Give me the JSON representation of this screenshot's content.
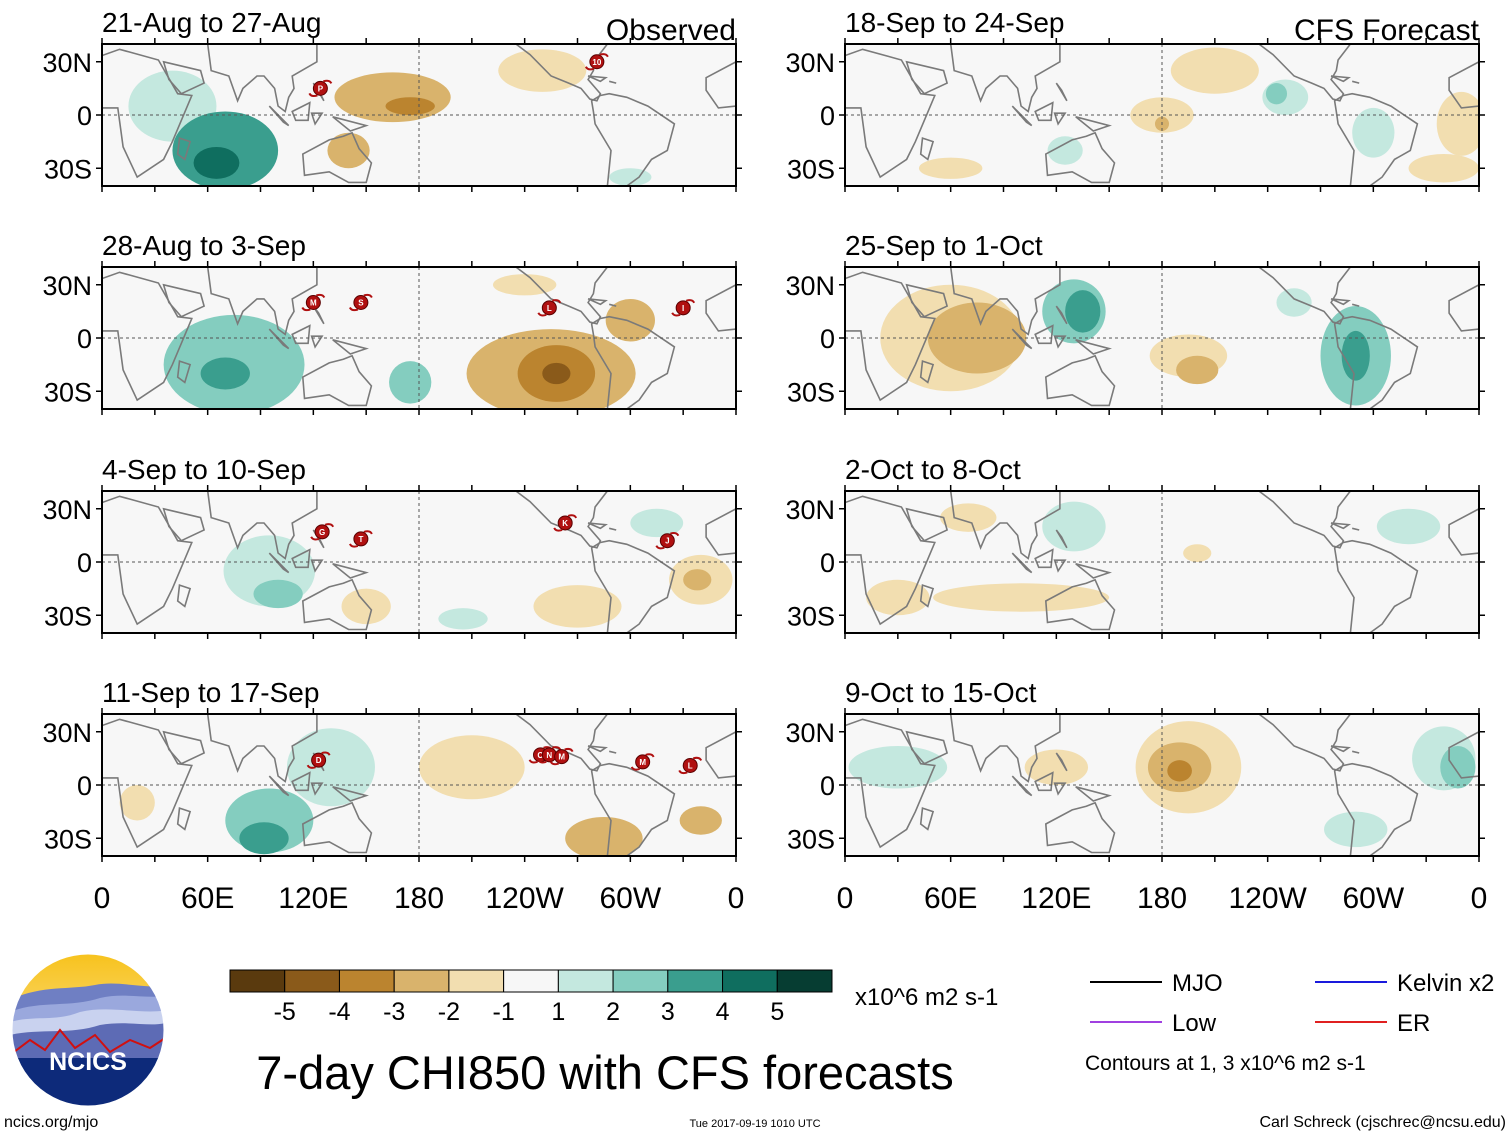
{
  "chart_data": {
    "type": "heatmap",
    "title": "7-day CHI850 with CFS forecasts",
    "units": "x10^6 m2 s-1",
    "colorbar": {
      "labels": [
        "-5",
        "-4",
        "-3",
        "-2",
        "-1",
        "1",
        "2",
        "3",
        "4",
        "5"
      ],
      "colors": [
        "#5a3a0e",
        "#8a5a1a",
        "#bb842f",
        "#d9b36c",
        "#f2deb0",
        "#f7f7f7",
        "#c4e8df",
        "#84cdbf",
        "#3a9e8e",
        "#0f6e5f",
        "#063d32"
      ]
    },
    "lon_ticks": [
      "0",
      "60E",
      "120E",
      "180",
      "120W",
      "60W",
      "0"
    ],
    "lat_ticks": [
      "30N",
      "0",
      "30S"
    ],
    "observed_label": "Observed",
    "forecast_label": "CFS Forecast",
    "panels": [
      {
        "title": "21-Aug to 27-Aug",
        "kind": "observed",
        "anomalies": [
          {
            "lon": 70,
            "lat": -20,
            "rx": 30,
            "ry": 22,
            "level": 3
          },
          {
            "lon": 65,
            "lat": -27,
            "rx": 13,
            "ry": 9,
            "level": 4
          },
          {
            "lon": 40,
            "lat": 5,
            "rx": 25,
            "ry": 20,
            "level": 1
          },
          {
            "lon": 165,
            "lat": 10,
            "rx": 33,
            "ry": 14,
            "level": -2
          },
          {
            "lon": 175,
            "lat": 5,
            "rx": 14,
            "ry": 5,
            "level": -3
          },
          {
            "lon": 140,
            "lat": -20,
            "rx": 12,
            "ry": 10,
            "level": -2
          },
          {
            "lon": 250,
            "lat": 25,
            "rx": 25,
            "ry": 12,
            "level": -1
          },
          {
            "lon": 300,
            "lat": -35,
            "rx": 12,
            "ry": 5,
            "level": 1
          }
        ],
        "storms": [
          {
            "lon": 124,
            "lat": 15,
            "label": "P"
          },
          {
            "lon": 281,
            "lat": 30,
            "label": "10"
          }
        ]
      },
      {
        "title": "28-Aug to 3-Sep",
        "kind": "observed",
        "anomalies": [
          {
            "lon": 75,
            "lat": -15,
            "rx": 40,
            "ry": 28,
            "level": 2
          },
          {
            "lon": 70,
            "lat": -20,
            "rx": 14,
            "ry": 9,
            "level": 3
          },
          {
            "lon": 175,
            "lat": -25,
            "rx": 12,
            "ry": 12,
            "level": 2
          },
          {
            "lon": 255,
            "lat": -20,
            "rx": 48,
            "ry": 25,
            "level": -2
          },
          {
            "lon": 258,
            "lat": -20,
            "rx": 22,
            "ry": 16,
            "level": -3
          },
          {
            "lon": 258,
            "lat": -20,
            "rx": 8,
            "ry": 6,
            "level": -4
          },
          {
            "lon": 300,
            "lat": 10,
            "rx": 14,
            "ry": 12,
            "level": -2
          },
          {
            "lon": 240,
            "lat": 30,
            "rx": 18,
            "ry": 6,
            "level": -1
          }
        ],
        "storms": [
          {
            "lon": 120,
            "lat": 20,
            "label": "M"
          },
          {
            "lon": 147,
            "lat": 20,
            "label": "S"
          },
          {
            "lon": 254,
            "lat": 17,
            "label": "L"
          },
          {
            "lon": 330,
            "lat": 17,
            "label": "I"
          }
        ]
      },
      {
        "title": "4-Sep to 10-Sep",
        "kind": "observed",
        "anomalies": [
          {
            "lon": 95,
            "lat": -5,
            "rx": 26,
            "ry": 20,
            "level": 1
          },
          {
            "lon": 100,
            "lat": -18,
            "rx": 14,
            "ry": 8,
            "level": 2
          },
          {
            "lon": 205,
            "lat": -32,
            "rx": 14,
            "ry": 6,
            "level": 1
          },
          {
            "lon": 150,
            "lat": -25,
            "rx": 14,
            "ry": 10,
            "level": -1
          },
          {
            "lon": 270,
            "lat": -25,
            "rx": 25,
            "ry": 12,
            "level": -1
          },
          {
            "lon": 340,
            "lat": -10,
            "rx": 18,
            "ry": 14,
            "level": -1
          },
          {
            "lon": 338,
            "lat": -10,
            "rx": 8,
            "ry": 6,
            "level": -2
          },
          {
            "lon": 315,
            "lat": 22,
            "rx": 15,
            "ry": 8,
            "level": 1
          }
        ],
        "storms": [
          {
            "lon": 125,
            "lat": 17,
            "label": "G"
          },
          {
            "lon": 147,
            "lat": 13,
            "label": "T"
          },
          {
            "lon": 263,
            "lat": 22,
            "label": "K"
          },
          {
            "lon": 321,
            "lat": 12,
            "label": "J"
          }
        ]
      },
      {
        "title": "11-Sep to 17-Sep",
        "kind": "observed",
        "anomalies": [
          {
            "lon": 95,
            "lat": -20,
            "rx": 25,
            "ry": 18,
            "level": 2
          },
          {
            "lon": 92,
            "lat": -30,
            "rx": 14,
            "ry": 9,
            "level": 3
          },
          {
            "lon": 130,
            "lat": 10,
            "rx": 25,
            "ry": 22,
            "level": 1
          },
          {
            "lon": 210,
            "lat": 10,
            "rx": 30,
            "ry": 18,
            "level": -1
          },
          {
            "lon": 285,
            "lat": -30,
            "rx": 22,
            "ry": 12,
            "level": -2
          },
          {
            "lon": 340,
            "lat": -20,
            "rx": 12,
            "ry": 8,
            "level": -2
          },
          {
            "lon": 20,
            "lat": -10,
            "rx": 10,
            "ry": 10,
            "level": -1
          }
        ],
        "storms": [
          {
            "lon": 123,
            "lat": 14,
            "label": "D"
          },
          {
            "lon": 249,
            "lat": 17,
            "label": "O"
          },
          {
            "lon": 254,
            "lat": 17,
            "label": "N"
          },
          {
            "lon": 261,
            "lat": 16,
            "label": "M"
          },
          {
            "lon": 307,
            "lat": 13,
            "label": "M"
          },
          {
            "lon": 334,
            "lat": 11,
            "label": "L"
          }
        ]
      },
      {
        "title": "18-Sep to 24-Sep",
        "kind": "forecast",
        "anomalies": [
          {
            "lon": 210,
            "lat": 25,
            "rx": 25,
            "ry": 13,
            "level": -1
          },
          {
            "lon": 180,
            "lat": 0,
            "rx": 18,
            "ry": 10,
            "level": -1
          },
          {
            "lon": 180,
            "lat": -5,
            "rx": 4,
            "ry": 4,
            "level": -2
          },
          {
            "lon": 250,
            "lat": 10,
            "rx": 13,
            "ry": 10,
            "level": 1
          },
          {
            "lon": 245,
            "lat": 12,
            "rx": 6,
            "ry": 6,
            "level": 2
          },
          {
            "lon": 350,
            "lat": -5,
            "rx": 14,
            "ry": 18,
            "level": -1
          },
          {
            "lon": 340,
            "lat": -30,
            "rx": 20,
            "ry": 8,
            "level": -1
          },
          {
            "lon": 60,
            "lat": -30,
            "rx": 18,
            "ry": 6,
            "level": -1
          },
          {
            "lon": 125,
            "lat": -20,
            "rx": 10,
            "ry": 8,
            "level": 1
          },
          {
            "lon": 300,
            "lat": -10,
            "rx": 12,
            "ry": 14,
            "level": 1
          }
        ],
        "storms": []
      },
      {
        "title": "25-Sep to 1-Oct",
        "kind": "forecast",
        "anomalies": [
          {
            "lon": 60,
            "lat": 0,
            "rx": 40,
            "ry": 30,
            "level": -1
          },
          {
            "lon": 75,
            "lat": 0,
            "rx": 28,
            "ry": 20,
            "level": -2
          },
          {
            "lon": 130,
            "lat": 15,
            "rx": 18,
            "ry": 18,
            "level": 2
          },
          {
            "lon": 135,
            "lat": 15,
            "rx": 10,
            "ry": 12,
            "level": 3
          },
          {
            "lon": 290,
            "lat": -10,
            "rx": 20,
            "ry": 28,
            "level": 2
          },
          {
            "lon": 290,
            "lat": -10,
            "rx": 8,
            "ry": 14,
            "level": 3
          },
          {
            "lon": 255,
            "lat": 20,
            "rx": 10,
            "ry": 8,
            "level": 1
          },
          {
            "lon": 195,
            "lat": -10,
            "rx": 22,
            "ry": 12,
            "level": -1
          },
          {
            "lon": 200,
            "lat": -18,
            "rx": 12,
            "ry": 8,
            "level": -2
          }
        ],
        "storms": []
      },
      {
        "title": "2-Oct to 8-Oct",
        "kind": "forecast",
        "anomalies": [
          {
            "lon": 130,
            "lat": 20,
            "rx": 18,
            "ry": 14,
            "level": 1
          },
          {
            "lon": 70,
            "lat": 25,
            "rx": 16,
            "ry": 8,
            "level": -1
          },
          {
            "lon": 100,
            "lat": -20,
            "rx": 50,
            "ry": 8,
            "level": -1
          },
          {
            "lon": 30,
            "lat": -20,
            "rx": 18,
            "ry": 10,
            "level": -1
          },
          {
            "lon": 200,
            "lat": 5,
            "rx": 8,
            "ry": 5,
            "level": -1
          },
          {
            "lon": 320,
            "lat": 20,
            "rx": 18,
            "ry": 10,
            "level": 1
          }
        ],
        "storms": []
      },
      {
        "title": "9-Oct to 15-Oct",
        "kind": "forecast",
        "anomalies": [
          {
            "lon": 195,
            "lat": 10,
            "rx": 30,
            "ry": 26,
            "level": -1
          },
          {
            "lon": 190,
            "lat": 10,
            "rx": 18,
            "ry": 14,
            "level": -2
          },
          {
            "lon": 190,
            "lat": 8,
            "rx": 7,
            "ry": 6,
            "level": -3
          },
          {
            "lon": 340,
            "lat": 15,
            "rx": 18,
            "ry": 18,
            "level": 1
          },
          {
            "lon": 348,
            "lat": 10,
            "rx": 10,
            "ry": 12,
            "level": 2
          },
          {
            "lon": 30,
            "lat": 10,
            "rx": 28,
            "ry": 12,
            "level": 1
          },
          {
            "lon": 290,
            "lat": -25,
            "rx": 18,
            "ry": 10,
            "level": 1
          },
          {
            "lon": 120,
            "lat": 10,
            "rx": 18,
            "ry": 10,
            "level": -1
          }
        ],
        "storms": []
      }
    ]
  },
  "legend": {
    "mjo": "MJO",
    "kelvin": "Kelvin x2",
    "low": "Low",
    "er": "ER",
    "colors": {
      "mjo": "#000000",
      "kelvin": "#1a1adc",
      "low": "#a040e0",
      "er": "#e02020"
    },
    "contours_note": "Contours at 1, 3 x10^6 m2 s-1"
  },
  "logo": {
    "text": "NCICS",
    "icon": "ncics-logo-icon"
  },
  "footer": {
    "site": "ncics.org/mjo",
    "timestamp": "Tue 2017-09-19 1010 UTC",
    "author": "Carl Schreck (cjschrec@ncsu.edu)"
  }
}
